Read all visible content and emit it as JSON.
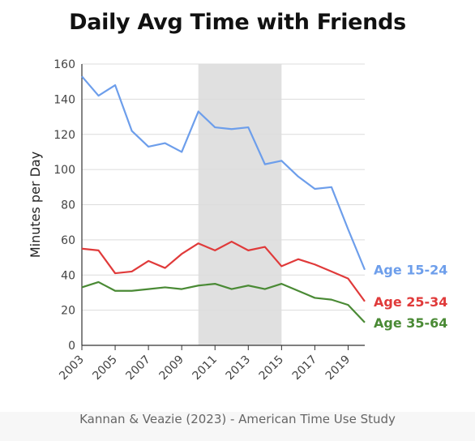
{
  "title": "Daily Avg Time with Friends",
  "source": "Kannan & Veazie (2023) - American Time Use Study",
  "chart_data": {
    "type": "line",
    "title": "Daily Avg Time with Friends",
    "xlabel": "",
    "ylabel": "Minutes per Day",
    "x": [
      2003,
      2004,
      2005,
      2006,
      2007,
      2008,
      2009,
      2010,
      2011,
      2012,
      2013,
      2014,
      2015,
      2016,
      2017,
      2018,
      2019,
      2020
    ],
    "x_ticks": [
      "2003",
      "2005",
      "2007",
      "2009",
      "2011",
      "2013",
      "2015",
      "2017",
      "2019"
    ],
    "y_ticks": [
      "0",
      "20",
      "40",
      "60",
      "80",
      "100",
      "120",
      "140",
      "160"
    ],
    "xlim": [
      2003,
      2020
    ],
    "ylim": [
      0,
      160
    ],
    "shaded_region": [
      2010,
      2015
    ],
    "grid": true,
    "series": [
      {
        "name": "Age 15-24",
        "color": "#6d9eeb",
        "values": [
          153,
          142,
          148,
          122,
          113,
          115,
          110,
          133,
          124,
          123,
          124,
          103,
          105,
          96,
          89,
          90,
          66,
          43
        ]
      },
      {
        "name": "Age 25-34",
        "color": "#e03a3a",
        "values": [
          55,
          54,
          41,
          42,
          48,
          44,
          52,
          58,
          54,
          59,
          54,
          56,
          45,
          49,
          46,
          42,
          38,
          25
        ]
      },
      {
        "name": "Age 35-64",
        "color": "#4a8a35",
        "values": [
          33,
          36,
          31,
          31,
          32,
          33,
          32,
          34,
          35,
          32,
          34,
          32,
          35,
          31,
          27,
          26,
          23,
          13
        ]
      }
    ]
  }
}
